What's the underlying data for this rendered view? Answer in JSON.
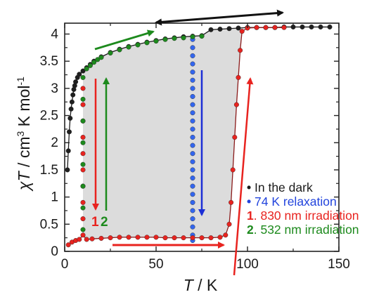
{
  "chart_data": {
    "type": "scatter",
    "xlabel_var": "T",
    "xlabel_unit": " / K",
    "ylabel_var": "χT",
    "ylabel_unit": " / cm",
    "ylabel_unit2": " K mol",
    "ylabel_sup1": "3",
    "ylabel_sup2": "-1",
    "xlim": [
      0,
      150
    ],
    "ylim": [
      0,
      4.2
    ],
    "x_ticks": [
      "0",
      "50",
      "100",
      "150"
    ],
    "y_ticks": [
      "0",
      "0.5",
      "1",
      "1.5",
      "2",
      "2.5",
      "3",
      "3.5",
      "4"
    ],
    "colors": {
      "dark": "#1f1f1f",
      "relax": "#3366ee",
      "ir830": "#e8231f",
      "ir532": "#1d8a1d",
      "hysteresis_fill": "#dcdcdc"
    },
    "legend": {
      "position": "lower-right",
      "entries": [
        {
          "bullet": "•",
          "num": "",
          "text": " In the dark",
          "color": "#1a1a1a"
        },
        {
          "bullet": "•",
          "num": "",
          "text": " 74 K relaxation",
          "color": "#2244dd"
        },
        {
          "bullet": "",
          "num": "1",
          "text": ". 830 nm irradiation",
          "color": "#e8231f"
        },
        {
          "bullet": "",
          "num": "2",
          "text": ". 532 nm irradiation",
          "color": "#1d8a1d"
        }
      ]
    },
    "arrow_labels": {
      "one": "1",
      "two": "2"
    },
    "series": [
      {
        "name": "In the dark",
        "color": "#1f1f1f",
        "points": [
          [
            1.5,
            1.5
          ],
          [
            2,
            1.85
          ],
          [
            2.5,
            2.2
          ],
          [
            3,
            2.45
          ],
          [
            3.5,
            2.62
          ],
          [
            4,
            2.75
          ],
          [
            4.5,
            2.88
          ],
          [
            5,
            2.98
          ],
          [
            5.5,
            3.05
          ],
          [
            6,
            3.12
          ],
          [
            7,
            3.2
          ],
          [
            8,
            3.26
          ],
          [
            10,
            3.32
          ],
          [
            12,
            3.38
          ],
          [
            14,
            3.44
          ],
          [
            16,
            3.5
          ],
          [
            20,
            3.58
          ],
          [
            25,
            3.66
          ],
          [
            30,
            3.72
          ],
          [
            35,
            3.77
          ],
          [
            40,
            3.81
          ],
          [
            45,
            3.85
          ],
          [
            50,
            3.88
          ],
          [
            55,
            3.91
          ],
          [
            60,
            3.93
          ],
          [
            65,
            3.95
          ],
          [
            70,
            3.96
          ],
          [
            75,
            3.97
          ],
          [
            80,
            4.08
          ],
          [
            85,
            4.09
          ],
          [
            90,
            4.1
          ],
          [
            95,
            4.11
          ],
          [
            100,
            4.12
          ],
          [
            105,
            4.12
          ],
          [
            110,
            4.12
          ],
          [
            115,
            4.12
          ],
          [
            120,
            4.13
          ],
          [
            125,
            4.13
          ],
          [
            130,
            4.13
          ],
          [
            135,
            4.13
          ],
          [
            140,
            4.13
          ],
          [
            145,
            4.13
          ]
        ]
      },
      {
        "name": "74 K relaxation",
        "color": "#3366ee",
        "points": [
          [
            70,
            0.2
          ],
          [
            70,
            0.3
          ],
          [
            70,
            0.45
          ],
          [
            70,
            0.6
          ],
          [
            70,
            0.75
          ],
          [
            70,
            0.9
          ],
          [
            70,
            1.05
          ],
          [
            70,
            1.2
          ],
          [
            70,
            1.35
          ],
          [
            70,
            1.5
          ],
          [
            70,
            1.65
          ],
          [
            70,
            1.8
          ],
          [
            70,
            1.95
          ],
          [
            70,
            2.1
          ],
          [
            70,
            2.25
          ],
          [
            70,
            2.4
          ],
          [
            70,
            2.55
          ],
          [
            70,
            2.7
          ],
          [
            70,
            2.85
          ],
          [
            70,
            3.0
          ],
          [
            70,
            3.15
          ],
          [
            70,
            3.3
          ],
          [
            70,
            3.45
          ],
          [
            70,
            3.6
          ],
          [
            70,
            3.75
          ],
          [
            70,
            3.9
          ]
        ]
      },
      {
        "name": "830 nm irradiation",
        "color": "#e8231f",
        "points": [
          [
            2,
            0.12
          ],
          [
            4,
            0.17
          ],
          [
            6,
            0.2
          ],
          [
            8,
            0.22
          ],
          [
            10,
            0.3
          ],
          [
            10,
            0.6
          ],
          [
            10,
            0.9
          ],
          [
            10,
            1.2
          ],
          [
            10,
            1.5
          ],
          [
            10,
            1.8
          ],
          [
            10,
            2.1
          ],
          [
            10,
            2.4
          ],
          [
            10,
            2.7
          ],
          [
            10,
            3.0
          ],
          [
            12,
            0.22
          ],
          [
            15,
            0.23
          ],
          [
            20,
            0.24
          ],
          [
            25,
            0.25
          ],
          [
            30,
            0.26
          ],
          [
            35,
            0.26
          ],
          [
            40,
            0.26
          ],
          [
            45,
            0.26
          ],
          [
            50,
            0.26
          ],
          [
            55,
            0.25
          ],
          [
            60,
            0.25
          ],
          [
            65,
            0.25
          ],
          [
            70,
            0.25
          ],
          [
            75,
            0.25
          ],
          [
            80,
            0.25
          ],
          [
            85,
            0.26
          ],
          [
            88,
            0.3
          ],
          [
            90,
            0.5
          ],
          [
            91,
            0.9
          ],
          [
            92,
            1.5
          ],
          [
            93,
            2.1
          ],
          [
            94,
            2.7
          ],
          [
            95,
            3.2
          ],
          [
            96,
            3.7
          ],
          [
            97,
            4.05
          ],
          [
            100,
            4.11
          ],
          [
            105,
            4.12
          ],
          [
            110,
            4.12
          ],
          [
            115,
            4.12
          ],
          [
            120,
            4.12
          ]
        ]
      },
      {
        "name": "532 nm irradiation",
        "color": "#1d8a1d",
        "points": [
          [
            10,
            0.4
          ],
          [
            10,
            0.8
          ],
          [
            10,
            1.2
          ],
          [
            10,
            1.6
          ],
          [
            10,
            2.0
          ],
          [
            10,
            2.4
          ],
          [
            10,
            2.8
          ],
          [
            10,
            3.2
          ],
          [
            12,
            3.36
          ],
          [
            14,
            3.42
          ],
          [
            16,
            3.48
          ],
          [
            18,
            3.53
          ],
          [
            20,
            3.57
          ],
          [
            25,
            3.65
          ],
          [
            30,
            3.71
          ],
          [
            35,
            3.76
          ],
          [
            40,
            3.8
          ],
          [
            45,
            3.84
          ],
          [
            50,
            3.87
          ],
          [
            55,
            3.9
          ],
          [
            60,
            3.92
          ],
          [
            65,
            3.93
          ],
          [
            70,
            3.95
          ],
          [
            75,
            3.96
          ]
        ]
      }
    ]
  }
}
